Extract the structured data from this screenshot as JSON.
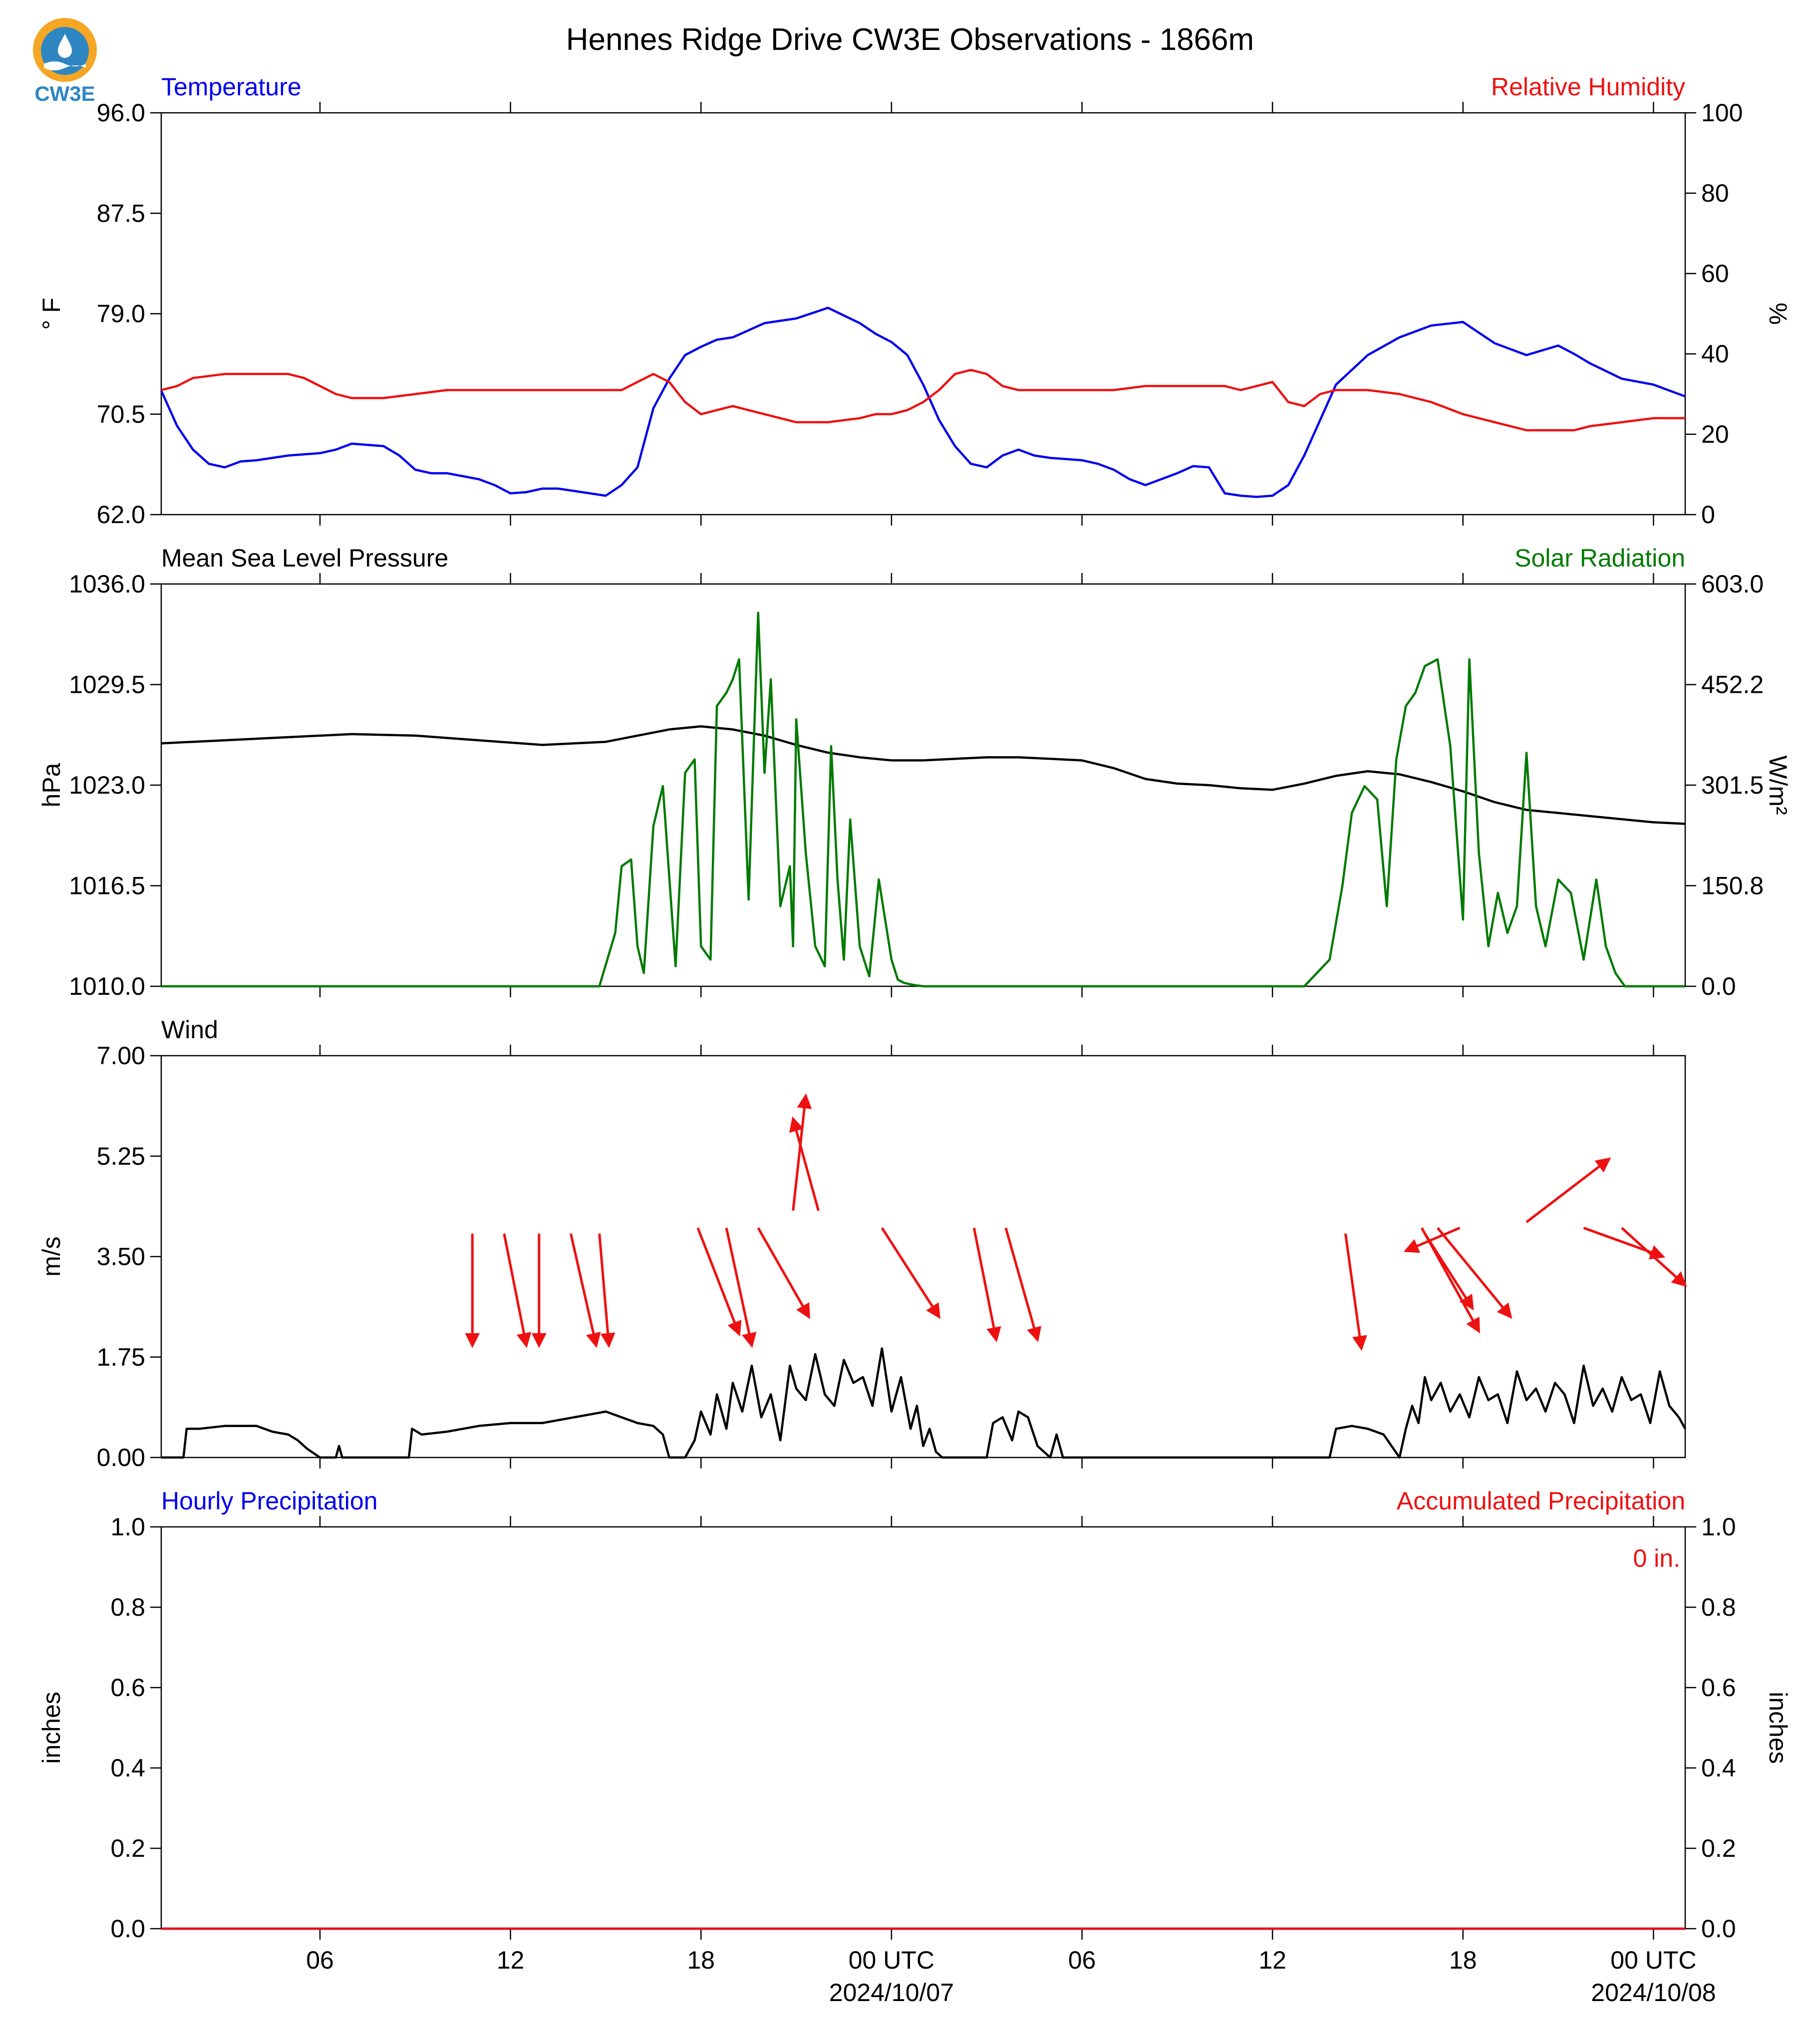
{
  "title": "Hennes Ridge Drive CW3E Observations - 1866m",
  "logo_text": "CW3E",
  "colors": {
    "blue": "#0000ee",
    "red": "#ee1111",
    "green": "#007a00",
    "black": "#000000",
    "logo_orange": "#f5a623",
    "logo_blue": "#2e86c1"
  },
  "x_axis": {
    "range_hours": [
      0,
      48
    ],
    "tick_hours": [
      5,
      11,
      17,
      23,
      29,
      35,
      41,
      47
    ],
    "tick_labels": [
      "06",
      "12",
      "18",
      "00 UTC",
      "06",
      "12",
      "18",
      "00 UTC"
    ],
    "date_labels": [
      {
        "hour": 23,
        "text": "2024/10/07"
      },
      {
        "hour": 47,
        "text": "2024/10/08"
      }
    ]
  },
  "chart_data": [
    {
      "type": "line",
      "panel": "temperature_humidity",
      "left_title": "Temperature",
      "right_title": "Relative Humidity",
      "ylabel_left": "° F",
      "ylabel_right": "%",
      "ylim_left": [
        62.0,
        96.0
      ],
      "ylim_right": [
        0,
        100
      ],
      "yticks_left": [
        "62.0",
        "70.5",
        "79.0",
        "87.5",
        "96.0"
      ],
      "yticks_right": [
        "0",
        "20",
        "40",
        "60",
        "80",
        "100"
      ],
      "series": [
        {
          "name": "Temperature",
          "axis": "left",
          "color": "blue",
          "x": [
            0,
            0.5,
            1,
            1.5,
            2,
            2.5,
            3,
            4,
            5,
            5.5,
            6,
            7,
            7.5,
            8,
            8.5,
            9,
            10,
            10.5,
            11,
            11.5,
            12,
            12.5,
            13,
            14,
            14.5,
            15,
            15.5,
            16,
            16.5,
            17,
            17.5,
            18,
            19,
            20,
            21,
            22,
            22.5,
            23,
            23.5,
            24,
            24.5,
            25,
            25.5,
            26,
            26.5,
            27,
            27.5,
            28,
            29,
            29.5,
            30,
            30.5,
            31,
            32,
            32.5,
            33,
            33.5,
            34,
            34.5,
            35,
            35.5,
            36,
            37,
            38,
            39,
            40,
            41,
            42,
            43,
            44,
            44.5,
            45,
            46,
            47,
            48
          ],
          "y": [
            72.5,
            69.5,
            67.5,
            66.3,
            66.0,
            66.5,
            66.6,
            67.0,
            67.2,
            67.5,
            68.0,
            67.8,
            67.0,
            65.8,
            65.5,
            65.5,
            65.0,
            64.5,
            63.8,
            63.9,
            64.2,
            64.2,
            64.0,
            63.6,
            64.5,
            66.0,
            71.0,
            73.5,
            75.5,
            76.2,
            76.8,
            77.0,
            78.2,
            78.6,
            79.5,
            78.2,
            77.3,
            76.6,
            75.5,
            73.0,
            70.0,
            67.8,
            66.3,
            66.0,
            67.0,
            67.5,
            67.0,
            66.8,
            66.6,
            66.3,
            65.8,
            65.0,
            64.5,
            65.5,
            66.1,
            66.0,
            63.8,
            63.6,
            63.5,
            63.6,
            64.5,
            67.0,
            73.0,
            75.5,
            77.0,
            78.0,
            78.3,
            76.5,
            75.5,
            76.3,
            75.6,
            74.8,
            73.5,
            73.0,
            72.0
          ]
        },
        {
          "name": "Relative Humidity",
          "axis": "right",
          "color": "red",
          "x": [
            0,
            0.5,
            1,
            2,
            3,
            4,
            4.5,
            5,
            5.5,
            6,
            7,
            8,
            9,
            10,
            11,
            12,
            13,
            14,
            14.5,
            15,
            15.5,
            16,
            16.5,
            17,
            17.5,
            18,
            19,
            19.5,
            20,
            21,
            22,
            22.5,
            23,
            23.5,
            24,
            24.5,
            25,
            25.5,
            26,
            26.5,
            27,
            28,
            29,
            30,
            31,
            32,
            33,
            33.5,
            34,
            34.5,
            35,
            35.5,
            36,
            36.5,
            37,
            38,
            39,
            40,
            41,
            42,
            43,
            44,
            44.5,
            45,
            46,
            47,
            48
          ],
          "y": [
            31,
            32,
            34,
            35,
            35,
            35,
            34,
            32,
            30,
            29,
            29,
            30,
            31,
            31,
            31,
            31,
            31,
            31,
            31,
            33,
            35,
            33,
            28,
            25,
            26,
            27,
            25,
            24,
            23,
            23,
            24,
            25,
            25,
            26,
            28,
            31,
            35,
            36,
            35,
            32,
            31,
            31,
            31,
            31,
            32,
            32,
            32,
            32,
            31,
            32,
            33,
            28,
            27,
            30,
            31,
            31,
            30,
            28,
            25,
            23,
            21,
            21,
            21,
            22,
            23,
            24,
            24
          ]
        }
      ]
    },
    {
      "type": "line",
      "panel": "pressure_solar",
      "left_title": "Mean Sea Level Pressure",
      "right_title": "Solar Radiation",
      "ylabel_left": "hPa",
      "ylabel_right": "W/m²",
      "ylim_left": [
        1010.0,
        1036.0
      ],
      "ylim_right": [
        0.0,
        603.0
      ],
      "yticks_left": [
        "1010.0",
        "1016.5",
        "1023.0",
        "1029.5",
        "1036.0"
      ],
      "yticks_right": [
        "0.0",
        "150.8",
        "301.5",
        "452.2",
        "603.0"
      ],
      "series": [
        {
          "name": "Mean Sea Level Pressure",
          "axis": "left",
          "color": "black",
          "x": [
            0,
            2,
            4,
            6,
            8,
            10,
            12,
            14,
            15,
            16,
            17,
            18,
            19,
            20,
            21,
            22,
            23,
            24,
            25,
            26,
            27,
            28,
            29,
            30,
            31,
            32,
            33,
            34,
            35,
            36,
            37,
            38,
            39,
            40,
            41,
            42,
            43,
            44,
            45,
            46,
            47,
            48
          ],
          "y": [
            1025.7,
            1025.9,
            1026.1,
            1026.3,
            1026.2,
            1025.9,
            1025.6,
            1025.8,
            1026.2,
            1026.6,
            1026.8,
            1026.6,
            1026.2,
            1025.6,
            1025.1,
            1024.8,
            1024.6,
            1024.6,
            1024.7,
            1024.8,
            1024.8,
            1024.7,
            1024.6,
            1024.1,
            1023.4,
            1023.1,
            1023.0,
            1022.8,
            1022.7,
            1023.1,
            1023.6,
            1023.9,
            1023.7,
            1023.2,
            1022.6,
            1021.9,
            1021.4,
            1021.2,
            1021.0,
            1020.8,
            1020.6,
            1020.5
          ]
        },
        {
          "name": "Solar Radiation",
          "axis": "right",
          "color": "green",
          "x": [
            0,
            13.8,
            14.3,
            14.5,
            14.8,
            15.0,
            15.2,
            15.5,
            15.8,
            16.2,
            16.5,
            16.8,
            17.0,
            17.3,
            17.5,
            17.8,
            18.0,
            18.2,
            18.5,
            18.8,
            19.0,
            19.2,
            19.5,
            19.8,
            19.9,
            20.0,
            20.3,
            20.6,
            20.9,
            21.1,
            21.3,
            21.5,
            21.7,
            22.0,
            22.3,
            22.6,
            23.0,
            23.2,
            23.4,
            23.7,
            24.0,
            24.5,
            35.0,
            36.0,
            36.4,
            36.8,
            37.2,
            37.5,
            37.9,
            38.3,
            38.6,
            38.9,
            39.2,
            39.5,
            39.8,
            40.2,
            40.6,
            41.0,
            41.2,
            41.5,
            41.8,
            42.1,
            42.4,
            42.7,
            43.0,
            43.3,
            43.6,
            44.0,
            44.4,
            44.8,
            45.2,
            45.5,
            45.8,
            46.1,
            46.4,
            46.8,
            47.2,
            47.6,
            48.0
          ],
          "y": [
            0,
            0,
            80,
            180,
            190,
            60,
            20,
            240,
            300,
            30,
            320,
            340,
            60,
            40,
            420,
            440,
            460,
            490,
            130,
            560,
            320,
            460,
            120,
            180,
            60,
            400,
            200,
            60,
            30,
            360,
            160,
            40,
            250,
            60,
            15,
            160,
            40,
            10,
            5,
            2,
            0,
            0,
            0,
            0,
            20,
            40,
            150,
            260,
            300,
            280,
            120,
            340,
            420,
            440,
            480,
            490,
            360,
            100,
            490,
            200,
            60,
            140,
            80,
            120,
            350,
            120,
            60,
            160,
            140,
            40,
            160,
            60,
            20,
            0,
            0,
            0,
            0,
            0,
            0
          ]
        }
      ]
    },
    {
      "type": "line",
      "panel": "wind",
      "left_title": "Wind",
      "ylabel_left": "m/s",
      "ylim_left": [
        0.0,
        7.0
      ],
      "yticks_left": [
        "0.00",
        "1.75",
        "3.50",
        "5.25",
        "7.00"
      ],
      "series": [
        {
          "name": "Wind",
          "axis": "left",
          "color": "black",
          "x": [
            0,
            0.7,
            0.8,
            1.2,
            2,
            3,
            3.5,
            4,
            4.3,
            4.6,
            5,
            5.5,
            5.6,
            5.7,
            7.8,
            7.9,
            8.2,
            9,
            10,
            11,
            12,
            13,
            13.5,
            14,
            14.5,
            15,
            15.5,
            15.8,
            16,
            16.2,
            16.5,
            16.8,
            17,
            17.3,
            17.5,
            17.8,
            18,
            18.3,
            18.6,
            18.9,
            19.2,
            19.5,
            19.8,
            20.0,
            20.3,
            20.6,
            20.9,
            21.2,
            21.5,
            21.8,
            22.1,
            22.4,
            22.7,
            23.0,
            23.3,
            23.6,
            23.8,
            24.0,
            24.2,
            24.4,
            24.6,
            26,
            26.2,
            26.5,
            26.8,
            27.0,
            27.3,
            27.6,
            27.8,
            28.0,
            28.2,
            28.4,
            28.6,
            36.8,
            37.0,
            37.5,
            38.0,
            38.5,
            39.0,
            39.2,
            39.4,
            39.6,
            39.8,
            40.0,
            40.3,
            40.6,
            40.9,
            41.2,
            41.5,
            41.8,
            42.1,
            42.4,
            42.7,
            43.0,
            43.3,
            43.6,
            43.9,
            44.2,
            44.5,
            44.8,
            45.1,
            45.4,
            45.7,
            46.0,
            46.3,
            46.6,
            46.9,
            47.2,
            47.5,
            47.8,
            48.0
          ],
          "y": [
            0,
            0,
            0.5,
            0.5,
            0.55,
            0.55,
            0.45,
            0.4,
            0.3,
            0.15,
            0,
            0,
            0.2,
            0,
            0,
            0.5,
            0.4,
            0.45,
            0.55,
            0.6,
            0.6,
            0.7,
            0.75,
            0.8,
            0.7,
            0.6,
            0.55,
            0.4,
            0,
            0,
            0,
            0.3,
            0.8,
            0.4,
            1.1,
            0.5,
            1.3,
            0.8,
            1.6,
            0.7,
            1.1,
            0.3,
            1.6,
            1.2,
            1.0,
            1.8,
            1.1,
            0.9,
            1.7,
            1.3,
            1.4,
            0.9,
            1.9,
            0.8,
            1.4,
            0.5,
            0.9,
            0.2,
            0.5,
            0.1,
            0,
            0,
            0.6,
            0.7,
            0.3,
            0.8,
            0.7,
            0.2,
            0.1,
            0,
            0.4,
            0,
            0,
            0,
            0.5,
            0.55,
            0.5,
            0.4,
            0.0,
            0.5,
            0.9,
            0.6,
            1.4,
            1.0,
            1.3,
            0.8,
            1.1,
            0.7,
            1.4,
            1.0,
            1.1,
            0.6,
            1.5,
            1.0,
            1.2,
            0.8,
            1.3,
            1.1,
            0.6,
            1.6,
            0.9,
            1.2,
            0.8,
            1.4,
            1.0,
            1.1,
            0.6,
            1.5,
            0.9,
            0.7,
            0.5
          ]
        }
      ],
      "wind_arrows_color": "red",
      "wind_arrows": [
        {
          "x0": 9.8,
          "y0": 3.9,
          "x1": 9.8,
          "y1": 1.95
        },
        {
          "x0": 10.8,
          "y0": 3.9,
          "x1": 11.5,
          "y1": 1.95
        },
        {
          "x0": 11.9,
          "y0": 3.9,
          "x1": 11.9,
          "y1": 1.95
        },
        {
          "x0": 12.9,
          "y0": 3.9,
          "x1": 13.7,
          "y1": 1.95
        },
        {
          "x0": 13.8,
          "y0": 3.9,
          "x1": 14.1,
          "y1": 1.95
        },
        {
          "x0": 16.9,
          "y0": 4.0,
          "x1": 18.2,
          "y1": 2.15
        },
        {
          "x0": 17.8,
          "y0": 4.0,
          "x1": 18.6,
          "y1": 1.95
        },
        {
          "x0": 18.8,
          "y0": 4.0,
          "x1": 20.4,
          "y1": 2.45
        },
        {
          "x0": 19.9,
          "y0": 4.3,
          "x1": 20.3,
          "y1": 6.3
        },
        {
          "x0": 20.7,
          "y0": 4.3,
          "x1": 19.9,
          "y1": 5.9
        },
        {
          "x0": 22.7,
          "y0": 4.0,
          "x1": 24.5,
          "y1": 2.45
        },
        {
          "x0": 25.6,
          "y0": 4.0,
          "x1": 26.3,
          "y1": 2.05
        },
        {
          "x0": 26.6,
          "y0": 4.0,
          "x1": 27.6,
          "y1": 2.05
        },
        {
          "x0": 37.3,
          "y0": 3.9,
          "x1": 37.8,
          "y1": 1.9
        },
        {
          "x0": 40.9,
          "y0": 4.0,
          "x1": 39.2,
          "y1": 3.6
        },
        {
          "x0": 39.7,
          "y0": 4.0,
          "x1": 41.5,
          "y1": 2.2
        },
        {
          "x0": 40.2,
          "y0": 4.0,
          "x1": 42.5,
          "y1": 2.45
        },
        {
          "x0": 39.8,
          "y0": 3.9,
          "x1": 41.3,
          "y1": 2.6
        },
        {
          "x0": 44.8,
          "y0": 4.0,
          "x1": 47.3,
          "y1": 3.5
        },
        {
          "x0": 43.0,
          "y0": 4.1,
          "x1": 45.6,
          "y1": 5.2
        },
        {
          "x0": 46.0,
          "y0": 4.0,
          "x1": 48.0,
          "y1": 3.0
        }
      ]
    },
    {
      "type": "line",
      "panel": "precipitation",
      "left_title": "Hourly Precipitation",
      "right_title": "Accumulated Precipitation",
      "ylabel_left": "inches",
      "ylabel_right": "inches",
      "ylim_left": [
        0.0,
        1.0
      ],
      "ylim_right": [
        0.0,
        1.0
      ],
      "yticks_left": [
        "0.0",
        "0.2",
        "0.4",
        "0.6",
        "0.8",
        "1.0"
      ],
      "yticks_right": [
        "0.0",
        "0.2",
        "0.4",
        "0.6",
        "0.8",
        "1.0"
      ],
      "annotation": "0 in.",
      "series": [
        {
          "name": "Hourly Precipitation",
          "axis": "left",
          "color": "blue",
          "x": [
            0,
            48
          ],
          "y": [
            0,
            0
          ]
        },
        {
          "name": "Accumulated Precipitation",
          "axis": "right",
          "color": "red",
          "x": [
            0,
            48
          ],
          "y": [
            0,
            0
          ]
        }
      ]
    }
  ]
}
